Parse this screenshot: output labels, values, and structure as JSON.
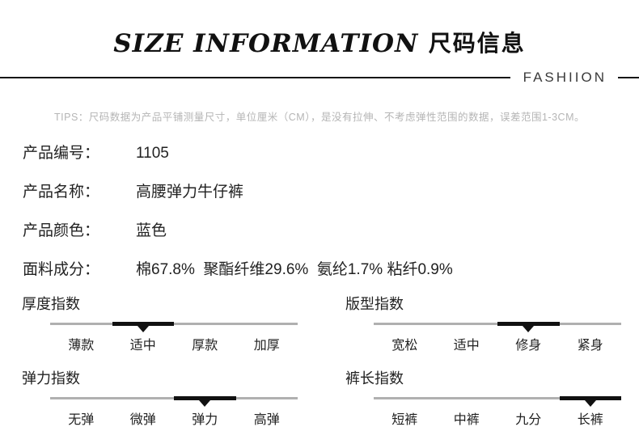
{
  "header": {
    "title_en": "SIZE INFORMATION",
    "title_zh": "尺码信息",
    "brand": "FASHIION"
  },
  "tips": "TIPS：尺码数据为产品平铺测量尺寸，单位厘米（CM），是没有拉伸、不考虑弹性范围的数据，误差范围1-3CM。",
  "product_info": {
    "rows": [
      {
        "label": "产品编号：",
        "value": "1105"
      },
      {
        "label": "产品名称：",
        "value": "高腰弹力牛仔裤"
      },
      {
        "label": "产品颜色：",
        "value": "蓝色"
      },
      {
        "label": "面料成分：",
        "value": "棉67.8%  聚酯纤维29.6%  氨纶1.7% 粘纤0.9%"
      }
    ]
  },
  "indexes": [
    {
      "title": "厚度指数",
      "options": [
        "薄款",
        "适中",
        "厚款",
        "加厚"
      ],
      "active_index": 1,
      "active_label": "适中"
    },
    {
      "title": "版型指数",
      "options": [
        "宽松",
        "适中",
        "修身",
        "紧身"
      ],
      "active_index": 2,
      "active_label": "修身"
    },
    {
      "title": "弹力指数",
      "options": [
        "无弹",
        "微弹",
        "弹力",
        "高弹"
      ],
      "active_index": 2,
      "active_label": "弹力"
    },
    {
      "title": "裤长指数",
      "options": [
        "短裤",
        "中裤",
        "九分",
        "长裤"
      ],
      "active_index": 3,
      "active_label": "长裤"
    }
  ],
  "colors": {
    "text": "#222222",
    "title": "#111111",
    "tips_text": "#b5b5b5",
    "track_gray": "#b0b0b0",
    "track_active": "#111111",
    "divider": "#161616"
  }
}
